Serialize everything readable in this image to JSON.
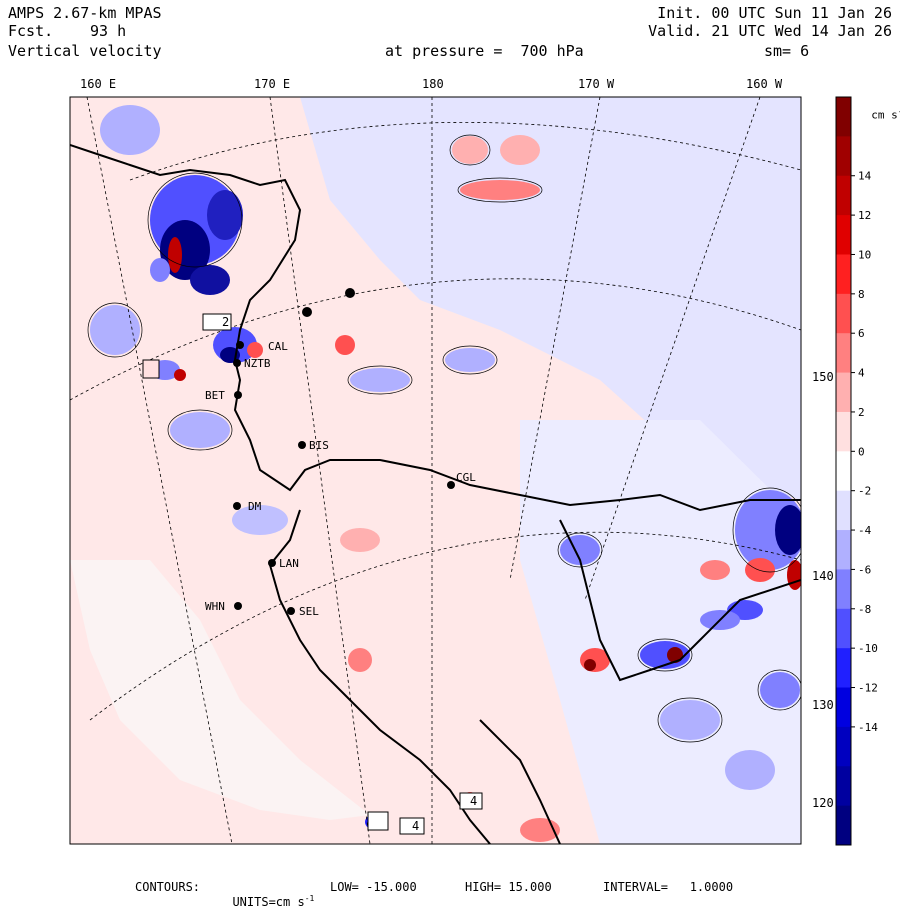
{
  "header": {
    "model": "AMPS 2.67-km MPAS",
    "fcst_label": "Fcst.",
    "fcst_value": "93 h",
    "field": "Vertical velocity",
    "init": "Init. 00 UTC Sun 11 Jan 26",
    "valid": "Valid. 21 UTC Wed 14 Jan 26",
    "pressure": "at pressure =  700 hPa",
    "smooth": "sm= 6"
  },
  "longitude_labels": [
    "160 E",
    "170 E",
    "180",
    "170 W",
    "160 W"
  ],
  "latitude_labels": [
    "150 W",
    "140 W",
    "130 W",
    "120 W"
  ],
  "stations": [
    "CAL",
    "NZTB",
    "BET",
    "BIS",
    "CGL",
    "DM",
    "LAN",
    "WHN",
    "SEL"
  ],
  "colorbar": {
    "unit_label": "cm s",
    "unit_exp": "-1",
    "ticks": [
      "14",
      "12",
      "10",
      "8",
      "6",
      "4",
      "2",
      "0",
      "-2",
      "-4",
      "-6",
      "-8",
      "-10",
      "-12",
      "-14"
    ],
    "colors": [
      "#800000",
      "#a00000",
      "#c00000",
      "#e00000",
      "#ff2020",
      "#ff5050",
      "#ff8080",
      "#ffb0b0",
      "#ffe0e0",
      "#ffffff",
      "#e0e0ff",
      "#b0b0ff",
      "#8080ff",
      "#5050ff",
      "#2020ff",
      "#0000e0",
      "#0000c0",
      "#0000a0",
      "#000080"
    ]
  },
  "box_labels": [
    "2",
    "4",
    "4"
  ],
  "footer": {
    "contours": "CONTOURS:",
    "units_label": "UNITS=cm s",
    "units_exp": "-1",
    "low": "LOW= -15.000",
    "high": "HIGH= 15.000",
    "interval": "INTERVAL=   1.0000"
  }
}
